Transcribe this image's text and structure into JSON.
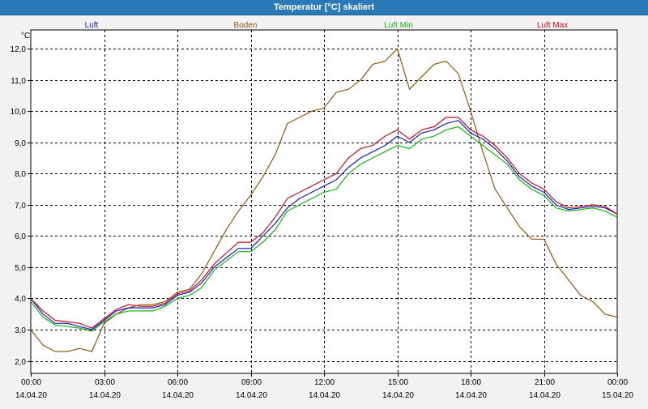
{
  "window": {
    "title": "Temperatur [°C] skaliert"
  },
  "chart_data": {
    "type": "line",
    "title": "Temperatur [°C] skaliert",
    "ylabel": "°C",
    "xlabel": "",
    "ylim": [
      1.6,
      12.6
    ],
    "xlim": [
      0,
      24
    ],
    "grid": true,
    "y_ticks": [
      2.0,
      3.0,
      4.0,
      5.0,
      6.0,
      7.0,
      8.0,
      9.0,
      10.0,
      11.0,
      12.0
    ],
    "y_tick_labels": [
      "2,0",
      "3,0",
      "4,0",
      "5,0",
      "6,0",
      "7,0",
      "8,0",
      "9,0",
      "10,0",
      "11,0",
      "12,0"
    ],
    "x_ticks": [
      0,
      3,
      6,
      9,
      12,
      15,
      18,
      21,
      24
    ],
    "x_tick_labels": [
      {
        "time": "00:00",
        "date": "14.04.20"
      },
      {
        "time": "03:00",
        "date": "14.04.20"
      },
      {
        "time": "06:00",
        "date": "14.04.20"
      },
      {
        "time": "09:00",
        "date": "14.04.20"
      },
      {
        "time": "12:00",
        "date": "14.04.20"
      },
      {
        "time": "15:00",
        "date": "14.04.20"
      },
      {
        "time": "18:00",
        "date": "14.04.20"
      },
      {
        "time": "21:00",
        "date": "14.04.20"
      },
      {
        "time": "00:00",
        "date": "15.04.20"
      }
    ],
    "series": [
      {
        "name": "Luft",
        "color": "#1a1ab4",
        "x": [
          0,
          0.5,
          1,
          1.5,
          2,
          2.5,
          3,
          3.5,
          4,
          4.5,
          5,
          5.5,
          6,
          6.5,
          7,
          7.5,
          8,
          8.5,
          9,
          9.5,
          10,
          10.5,
          11,
          11.5,
          12,
          12.5,
          13,
          13.5,
          14,
          14.5,
          15,
          15.5,
          16,
          16.5,
          17,
          17.5,
          18,
          18.5,
          19,
          19.5,
          20,
          20.5,
          21,
          21.5,
          22,
          22.5,
          23,
          23.5,
          24
        ],
        "y": [
          4.0,
          3.5,
          3.2,
          3.2,
          3.1,
          3.0,
          3.3,
          3.6,
          3.7,
          3.7,
          3.7,
          3.8,
          4.1,
          4.2,
          4.5,
          5.0,
          5.3,
          5.6,
          5.6,
          6.0,
          6.4,
          6.9,
          7.2,
          7.4,
          7.6,
          7.8,
          8.2,
          8.5,
          8.7,
          8.9,
          9.2,
          9.0,
          9.3,
          9.4,
          9.6,
          9.7,
          9.3,
          9.1,
          8.8,
          8.4,
          7.9,
          7.6,
          7.4,
          7.0,
          6.85,
          6.9,
          6.95,
          6.9,
          6.7
        ]
      },
      {
        "name": "Boden",
        "color": "#8b5a10",
        "x": [
          0,
          0.5,
          1,
          1.5,
          2,
          2.5,
          3,
          3.5,
          4,
          4.5,
          5,
          5.5,
          6,
          6.5,
          7,
          7.5,
          8,
          8.5,
          9,
          9.5,
          10,
          10.5,
          11,
          11.5,
          12,
          12.5,
          13,
          13.5,
          14,
          14.5,
          15,
          15.5,
          16,
          16.5,
          17,
          17.5,
          18,
          18.5,
          19,
          19.5,
          20,
          20.5,
          21,
          21.5,
          22,
          22.5,
          23,
          23.5,
          24
        ],
        "y": [
          3.0,
          2.5,
          2.3,
          2.3,
          2.4,
          2.3,
          3.2,
          3.5,
          3.7,
          3.8,
          3.8,
          3.9,
          4.2,
          4.3,
          4.8,
          5.5,
          6.2,
          6.8,
          7.3,
          7.9,
          8.6,
          9.6,
          9.8,
          10.0,
          10.1,
          10.6,
          10.7,
          11.0,
          11.5,
          11.6,
          12.0,
          10.7,
          11.1,
          11.5,
          11.6,
          11.2,
          10.0,
          8.7,
          7.5,
          6.9,
          6.3,
          5.9,
          5.9,
          5.1,
          4.6,
          4.1,
          3.9,
          3.5,
          3.4
        ]
      },
      {
        "name": "Luft Min",
        "color": "#10b410",
        "x": [
          0,
          0.5,
          1,
          1.5,
          2,
          2.5,
          3,
          3.5,
          4,
          4.5,
          5,
          5.5,
          6,
          6.5,
          7,
          7.5,
          8,
          8.5,
          9,
          9.5,
          10,
          10.5,
          11,
          11.5,
          12,
          12.5,
          13,
          13.5,
          14,
          14.5,
          15,
          15.5,
          16,
          16.5,
          17,
          17.5,
          18,
          18.5,
          19,
          19.5,
          20,
          20.5,
          21,
          21.5,
          22,
          22.5,
          23,
          23.5,
          24
        ],
        "y": [
          3.9,
          3.4,
          3.15,
          3.1,
          3.05,
          2.95,
          3.25,
          3.5,
          3.6,
          3.6,
          3.6,
          3.75,
          4.0,
          4.1,
          4.35,
          4.9,
          5.2,
          5.5,
          5.5,
          5.8,
          6.2,
          6.8,
          7.0,
          7.2,
          7.4,
          7.5,
          8.0,
          8.3,
          8.5,
          8.7,
          8.9,
          8.8,
          9.1,
          9.2,
          9.4,
          9.5,
          9.2,
          8.9,
          8.6,
          8.3,
          7.8,
          7.5,
          7.3,
          6.9,
          6.8,
          6.85,
          6.9,
          6.8,
          6.6
        ]
      },
      {
        "name": "Luft Max",
        "color": "#c01020",
        "x": [
          0,
          0.5,
          1,
          1.5,
          2,
          2.5,
          3,
          3.5,
          4,
          4.5,
          5,
          5.5,
          6,
          6.5,
          7,
          7.5,
          8,
          8.5,
          9,
          9.5,
          10,
          10.5,
          11,
          11.5,
          12,
          12.5,
          13,
          13.5,
          14,
          14.5,
          15,
          15.5,
          16,
          16.5,
          17,
          17.5,
          18,
          18.5,
          19,
          19.5,
          20,
          20.5,
          21,
          21.5,
          22,
          22.5,
          23,
          23.5,
          24
        ],
        "y": [
          4.0,
          3.6,
          3.3,
          3.25,
          3.2,
          3.05,
          3.35,
          3.65,
          3.8,
          3.75,
          3.75,
          3.85,
          4.15,
          4.25,
          4.6,
          5.1,
          5.45,
          5.8,
          5.8,
          6.1,
          6.6,
          7.2,
          7.4,
          7.6,
          7.8,
          8.0,
          8.5,
          8.8,
          8.9,
          9.2,
          9.4,
          9.1,
          9.4,
          9.5,
          9.8,
          9.8,
          9.4,
          9.2,
          8.9,
          8.5,
          8.0,
          7.7,
          7.5,
          7.1,
          6.9,
          6.95,
          7.0,
          6.95,
          6.7
        ]
      }
    ]
  }
}
